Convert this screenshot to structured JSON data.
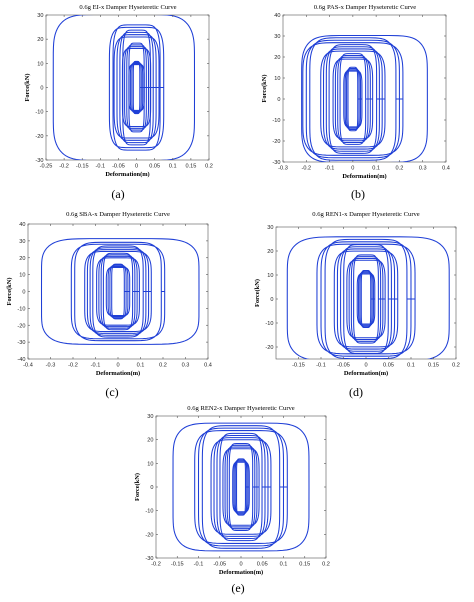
{
  "colors": {
    "trace": "#1f3fd6",
    "axis": "#555555"
  },
  "chart_data": [
    {
      "type": "line",
      "panel_label": "(a)",
      "title": "0.6g EI-x Damper Hyseteretic Curve",
      "xlabel": "Deformation(m)",
      "ylabel": "Force(kN)",
      "xlim": [
        -0.25,
        0.2
      ],
      "ylim": [
        -30,
        30
      ],
      "xticks": [
        -0.25,
        -0.2,
        -0.15,
        -0.1,
        -0.05,
        0,
        0.05,
        0.1,
        0.15,
        0.2
      ],
      "xtick_labels": [
        "-0.25",
        "-0.2",
        "-0.15",
        "-0.1",
        "-0.05",
        "0",
        "0.05",
        "0.1",
        "0.15",
        "0.2"
      ],
      "yticks": [
        -30,
        -20,
        -10,
        0,
        10,
        20,
        30
      ],
      "ytick_labels": [
        "-30",
        "-20",
        "-10",
        "0",
        "10",
        "20",
        "30"
      ],
      "series": [
        {
          "loops": [
            {
              "center": 0.0,
              "half_width": 0.015,
              "amplitude": 10,
              "repeat": 4,
              "spread": 0.004
            },
            {
              "center": 0.0,
              "half_width": 0.03,
              "amplitude": 17,
              "repeat": 4,
              "spread": 0.006
            },
            {
              "center": 0.0,
              "half_width": 0.05,
              "amplitude": 22,
              "repeat": 4,
              "spread": 0.008
            },
            {
              "center": 0.0,
              "half_width": 0.07,
              "amplitude": 24,
              "repeat": 2,
              "spread": 0.01
            },
            {
              "center": -0.035,
              "half_width": 0.195,
              "amplitude": 28,
              "repeat": 1,
              "spread": 0.0
            }
          ]
        }
      ]
    },
    {
      "type": "line",
      "panel_label": "(b)",
      "title": "0.6g PAS-x Damper Hyseteretic Curve",
      "xlabel": "Deformation(m)",
      "ylabel": "Force(kN)",
      "xlim": [
        -0.3,
        0.4
      ],
      "ylim": [
        -30,
        40
      ],
      "xticks": [
        -0.3,
        -0.2,
        -0.1,
        0,
        0.1,
        0.2,
        0.3,
        0.4
      ],
      "xtick_labels": [
        "-0.3",
        "-0.2",
        "-0.1",
        "0",
        "0.1",
        "0.2",
        "0.3",
        "0.4"
      ],
      "yticks": [
        -30,
        -20,
        -10,
        0,
        10,
        20,
        30,
        40
      ],
      "ytick_labels": [
        "-30",
        "-20",
        "-10",
        "0",
        "10",
        "20",
        "30",
        "40"
      ],
      "series": [
        {
          "loops": [
            {
              "center": 0.0,
              "half_width": 0.03,
              "amplitude": 14,
              "repeat": 4,
              "spread": 0.006
            },
            {
              "center": 0.0,
              "half_width": 0.07,
              "amplitude": 20,
              "repeat": 4,
              "spread": 0.01
            },
            {
              "center": 0.0,
              "half_width": 0.12,
              "amplitude": 24,
              "repeat": 4,
              "spread": 0.012
            },
            {
              "center": 0.0,
              "half_width": 0.2,
              "amplitude": 27,
              "repeat": 3,
              "spread": 0.015
            },
            {
              "center": 0.05,
              "half_width": 0.27,
              "amplitude": 28,
              "repeat": 1,
              "spread": 0.0
            }
          ]
        }
      ]
    },
    {
      "type": "line",
      "panel_label": "(c)",
      "title": "0.6g SBA-x Damper Hyseteretic Curve",
      "xlabel": "Deformation(m)",
      "ylabel": "Force(kN)",
      "xlim": [
        -0.4,
        0.4
      ],
      "ylim": [
        -40,
        40
      ],
      "xticks": [
        -0.4,
        -0.3,
        -0.2,
        -0.1,
        0,
        0.1,
        0.2,
        0.3,
        0.4
      ],
      "xtick_labels": [
        "-0.4",
        "-0.3",
        "-0.2",
        "-0.1",
        "0",
        "0.1",
        "0.2",
        "0.3",
        "0.4"
      ],
      "yticks": [
        -40,
        -30,
        -20,
        -10,
        0,
        10,
        20,
        30,
        40
      ],
      "ytick_labels": [
        "-40",
        "-30",
        "-20",
        "-10",
        "0",
        "10",
        "20",
        "30",
        "40"
      ],
      "series": [
        {
          "loops": [
            {
              "center": 0.0,
              "half_width": 0.04,
              "amplitude": 15,
              "repeat": 4,
              "spread": 0.008
            },
            {
              "center": 0.0,
              "half_width": 0.08,
              "amplitude": 21,
              "repeat": 4,
              "spread": 0.01
            },
            {
              "center": 0.0,
              "half_width": 0.13,
              "amplitude": 25,
              "repeat": 4,
              "spread": 0.012
            },
            {
              "center": 0.0,
              "half_width": 0.2,
              "amplitude": 27,
              "repeat": 2,
              "spread": 0.015
            },
            {
              "center": 0.01,
              "half_width": 0.35,
              "amplitude": 29,
              "repeat": 1,
              "spread": 0.0
            }
          ]
        }
      ]
    },
    {
      "type": "line",
      "panel_label": "(d)",
      "title": "0.6g REN1-x Damper Hyseteretic Curve",
      "xlabel": "Deformation(m)",
      "ylabel": "Force(kN)",
      "xlim": [
        -0.2,
        0.2
      ],
      "ylim": [
        -25,
        30
      ],
      "xticks": [
        -0.15,
        -0.1,
        -0.05,
        0,
        0.05,
        0.1,
        0.15,
        0.2
      ],
      "xtick_labels": [
        "-0.15",
        "-0.1",
        "-0.05",
        "0",
        "0.05",
        "0.1",
        "0.15",
        "0.2"
      ],
      "yticks": [
        -20,
        -10,
        0,
        10,
        20,
        30
      ],
      "ytick_labels": [
        "-20",
        "-10",
        "0",
        "10",
        "20",
        "30"
      ],
      "series": [
        {
          "loops": [
            {
              "center": 0.0,
              "half_width": 0.015,
              "amplitude": 11,
              "repeat": 4,
              "spread": 0.003
            },
            {
              "center": 0.0,
              "half_width": 0.035,
              "amplitude": 17,
              "repeat": 4,
              "spread": 0.005
            },
            {
              "center": 0.0,
              "half_width": 0.06,
              "amplitude": 21,
              "repeat": 4,
              "spread": 0.007
            },
            {
              "center": 0.0,
              "half_width": 0.1,
              "amplitude": 23,
              "repeat": 3,
              "spread": 0.009
            },
            {
              "center": 0.005,
              "half_width": 0.18,
              "amplitude": 24,
              "repeat": 1,
              "spread": 0.0
            }
          ]
        }
      ]
    },
    {
      "type": "line",
      "panel_label": "(e)",
      "title": "0.6g REN2-x Damper Hyseteretic Curve",
      "xlabel": "Deformation(m)",
      "ylabel": "Force(kN)",
      "xlim": [
        -0.2,
        0.2
      ],
      "ylim": [
        -30,
        30
      ],
      "xticks": [
        -0.2,
        -0.15,
        -0.1,
        -0.05,
        0,
        0.05,
        0.1,
        0.15,
        0.2
      ],
      "xtick_labels": [
        "-0.2",
        "-0.15",
        "-0.1",
        "-0.05",
        "0",
        "0.05",
        "0.1",
        "0.15",
        "0.2"
      ],
      "yticks": [
        -30,
        -20,
        -10,
        0,
        10,
        20,
        30
      ],
      "ytick_labels": [
        "-30",
        "-20",
        "-10",
        "0",
        "10",
        "20",
        "30"
      ],
      "series": [
        {
          "loops": [
            {
              "center": 0.0,
              "half_width": 0.015,
              "amplitude": 11,
              "repeat": 4,
              "spread": 0.003
            },
            {
              "center": 0.0,
              "half_width": 0.035,
              "amplitude": 17,
              "repeat": 4,
              "spread": 0.005
            },
            {
              "center": 0.0,
              "half_width": 0.06,
              "amplitude": 21,
              "repeat": 4,
              "spread": 0.007
            },
            {
              "center": 0.0,
              "half_width": 0.1,
              "amplitude": 24,
              "repeat": 3,
              "spread": 0.009
            },
            {
              "center": 0.0,
              "half_width": 0.16,
              "amplitude": 25,
              "repeat": 1,
              "spread": 0.0
            }
          ]
        }
      ]
    }
  ]
}
